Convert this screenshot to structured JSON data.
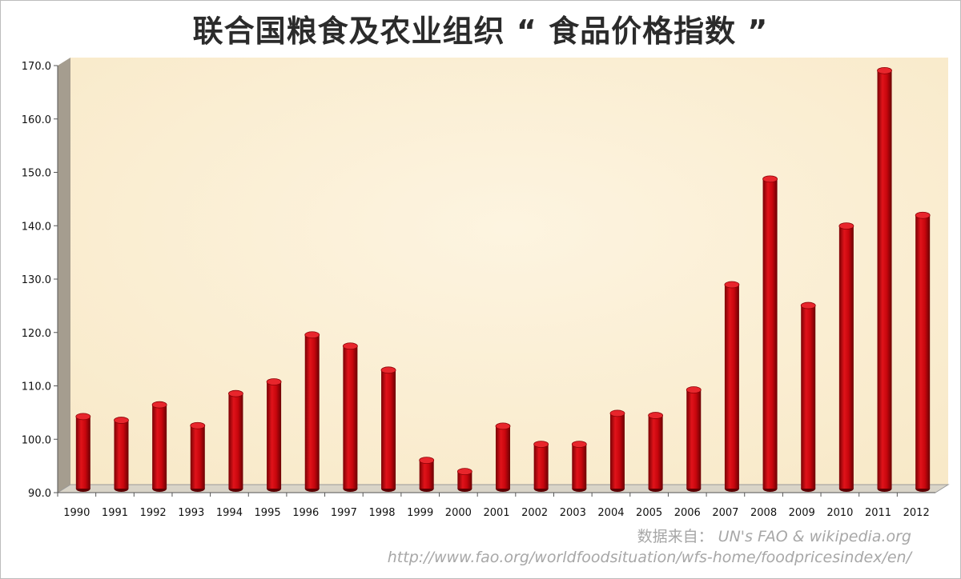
{
  "title": "联合国粮食及农业组织 “ 食品价格指数 ”",
  "source": {
    "label": "数据来自：",
    "value": "UN's FAO & wikipedia.org",
    "url": "http://www.fao.org/worldfoodsituation/wfs-home/foodpricesindex/en/"
  },
  "colors": {
    "bar": "#c8060d",
    "plot_background": "#fcf0d6",
    "side_wall": "#a59d8f"
  },
  "chart_data": {
    "type": "bar",
    "title": "联合国粮食及农业组织 “ 食品价格指数 ”",
    "xlabel": "",
    "ylabel": "",
    "ylim": [
      90,
      170
    ],
    "yticks": [
      "90.0",
      "100.0",
      "110.0",
      "120.0",
      "130.0",
      "140.0",
      "150.0",
      "160.0",
      "170.0"
    ],
    "grid": false,
    "categories": [
      "1990",
      "1991",
      "1992",
      "1993",
      "1994",
      "1995",
      "1996",
      "1997",
      "1998",
      "1999",
      "2000",
      "2001",
      "2002",
      "2003",
      "2004",
      "2005",
      "2006",
      "2007",
      "2008",
      "2009",
      "2010",
      "2011",
      "2012"
    ],
    "values": [
      103.5,
      102.8,
      105.7,
      101.8,
      107.8,
      110.0,
      118.8,
      116.7,
      112.2,
      95.3,
      93.2,
      101.7,
      98.3,
      98.3,
      104.1,
      103.7,
      108.5,
      128.2,
      148.0,
      124.3,
      139.2,
      168.3,
      141.2
    ]
  }
}
